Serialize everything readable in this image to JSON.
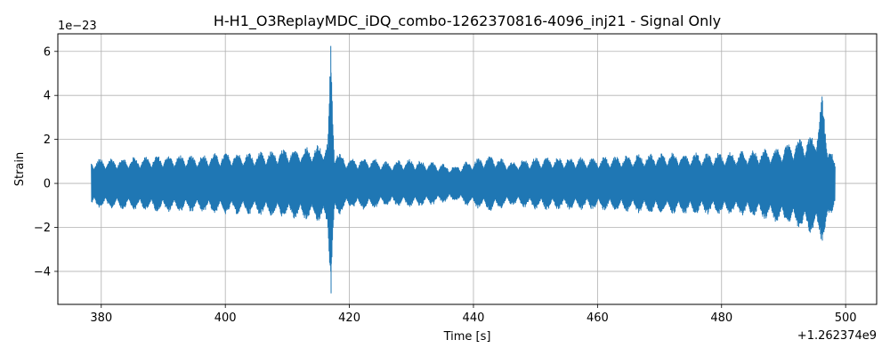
{
  "chart_data": {
    "type": "line",
    "title": "H-H1_O3ReplayMDC_iDQ_combo-1262370816-4096_inj21 - Signal Only",
    "xlabel": "Time [s]",
    "ylabel": "Strain",
    "x_offset_label": "+1.262374e9",
    "y_scale_label": "1e−23",
    "xlim": [
      373.0,
      505.0
    ],
    "ylim": [
      -5.5,
      6.8
    ],
    "x_ticks": [
      380,
      400,
      420,
      440,
      460,
      480,
      500
    ],
    "y_ticks": [
      -4,
      -2,
      0,
      2,
      4,
      6
    ],
    "x_tick_labels": [
      "380",
      "400",
      "420",
      "440",
      "460",
      "480",
      "500"
    ],
    "y_tick_labels": [
      "−4",
      "−2",
      "0",
      "2",
      "4",
      "6"
    ],
    "grid": true,
    "series": [
      {
        "color": "#1f77b4",
        "envelope_time": [
          378.4,
          385,
          390,
          395,
          400,
          405,
          410,
          414,
          416.5,
          417.0,
          417.6,
          420,
          423,
          426,
          430,
          433,
          437,
          440,
          443,
          446,
          450,
          455,
          460,
          465,
          470,
          475,
          480,
          485,
          488,
          491,
          493,
          495,
          496.2,
          497,
          498.3
        ],
        "envelope_upper": [
          1.1,
          1.2,
          1.3,
          1.3,
          1.4,
          1.4,
          1.6,
          1.7,
          1.9,
          6.25,
          1.6,
          1.1,
          1.2,
          1.0,
          1.1,
          1.0,
          0.8,
          1.1,
          1.3,
          1.0,
          1.2,
          1.2,
          1.2,
          1.3,
          1.4,
          1.4,
          1.4,
          1.5,
          1.6,
          1.8,
          2.1,
          2.2,
          3.95,
          2.2,
          0.9
        ],
        "envelope_lower": [
          -1.1,
          -1.2,
          -1.3,
          -1.3,
          -1.4,
          -1.4,
          -1.6,
          -1.7,
          -1.9,
          -5.0,
          -1.6,
          -1.1,
          -1.2,
          -1.0,
          -1.1,
          -1.0,
          -0.8,
          -1.1,
          -1.3,
          -1.0,
          -1.2,
          -1.2,
          -1.2,
          -1.3,
          -1.4,
          -1.4,
          -1.4,
          -1.5,
          -1.7,
          -1.9,
          -2.2,
          -2.3,
          -2.6,
          -2.2,
          -0.8
        ]
      }
    ]
  }
}
